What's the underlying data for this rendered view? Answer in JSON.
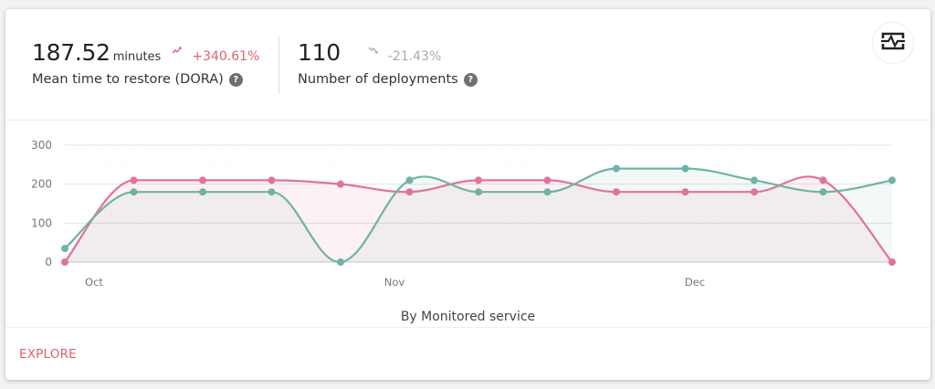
{
  "metrics": [
    {
      "value": "187.52",
      "unit": "minutes",
      "trend_icon": "trending-up-icon",
      "change": "+340.61%",
      "label": "Mean time to restore (DORA)",
      "help": "?"
    },
    {
      "value": "110",
      "unit": "",
      "trend_icon": "trending-down-icon",
      "change": "-21.43%",
      "label": "Number of deployments",
      "help": "?"
    }
  ],
  "toolbar": {
    "chart_toggle_icon": "activity-chart-icon"
  },
  "chart": {
    "subtitle": "By Monitored service"
  },
  "footer": {
    "explore_label": "EXPLORE"
  },
  "colors": {
    "mttr_series": "#e0739a",
    "deployments_series": "#6db3a8",
    "positive_change": "#e0636d",
    "negative_change": "#aaaaaa",
    "explore_link": "#dc5f6e"
  },
  "chart_data": {
    "type": "line",
    "title": "",
    "subtitle": "By Monitored service",
    "xlabel": "",
    "ylabel": "",
    "ylim": [
      0,
      300
    ],
    "yticks": [
      0,
      100,
      200,
      300
    ],
    "xtick_labels": [
      "Oct",
      "Nov",
      "Dec"
    ],
    "grid": true,
    "smooth": true,
    "area_fill": true,
    "x": [
      1,
      2,
      3,
      4,
      5,
      6,
      7,
      8,
      9,
      10,
      11,
      12,
      13
    ],
    "series": [
      {
        "name": "Mean time to restore",
        "color": "#e0739a",
        "values": [
          0,
          210,
          210,
          210,
          200,
          180,
          210,
          210,
          180,
          180,
          180,
          210,
          0
        ]
      },
      {
        "name": "Number of deployments",
        "color": "#6db3a8",
        "values": [
          35,
          180,
          180,
          180,
          0,
          210,
          180,
          180,
          240,
          240,
          210,
          180,
          210
        ]
      }
    ]
  }
}
